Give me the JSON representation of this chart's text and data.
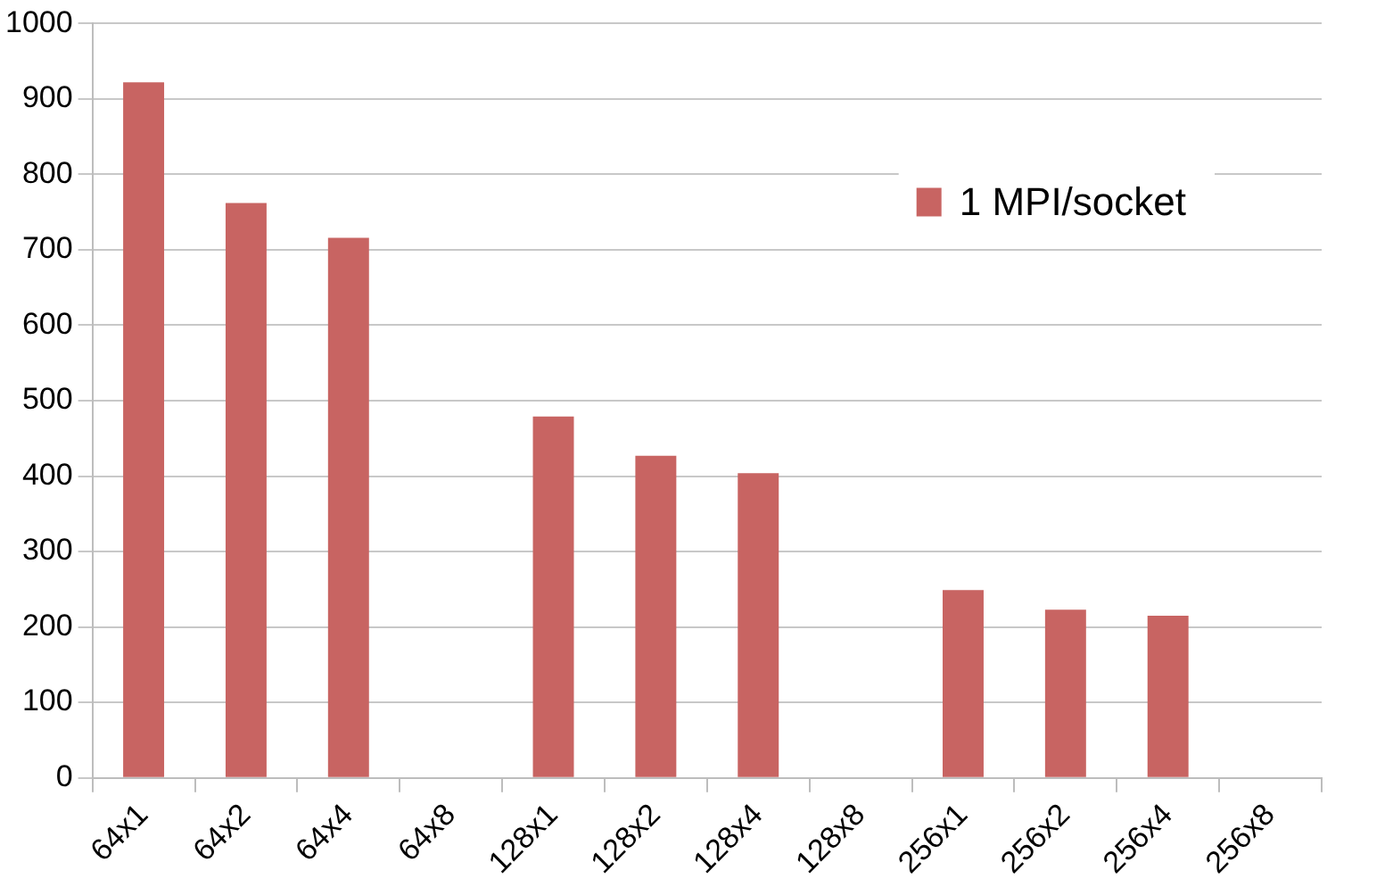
{
  "chart_data": {
    "type": "bar",
    "categories": [
      "64x1",
      "64x2",
      "64x4",
      "64x8",
      "128x1",
      "128x2",
      "128x4",
      "128x8",
      "256x1",
      "256x2",
      "256x4",
      "256x8"
    ],
    "series": [
      {
        "name": "1 MPI/socket",
        "color": "#c86462",
        "values": [
          922,
          762,
          716,
          null,
          479,
          427,
          404,
          null,
          249,
          223,
          215,
          null
        ]
      }
    ],
    "ylim": [
      0,
      1000
    ],
    "yticks": [
      0,
      100,
      200,
      300,
      400,
      500,
      600,
      700,
      800,
      900,
      1000
    ],
    "grid": "y",
    "legend": "top right"
  }
}
